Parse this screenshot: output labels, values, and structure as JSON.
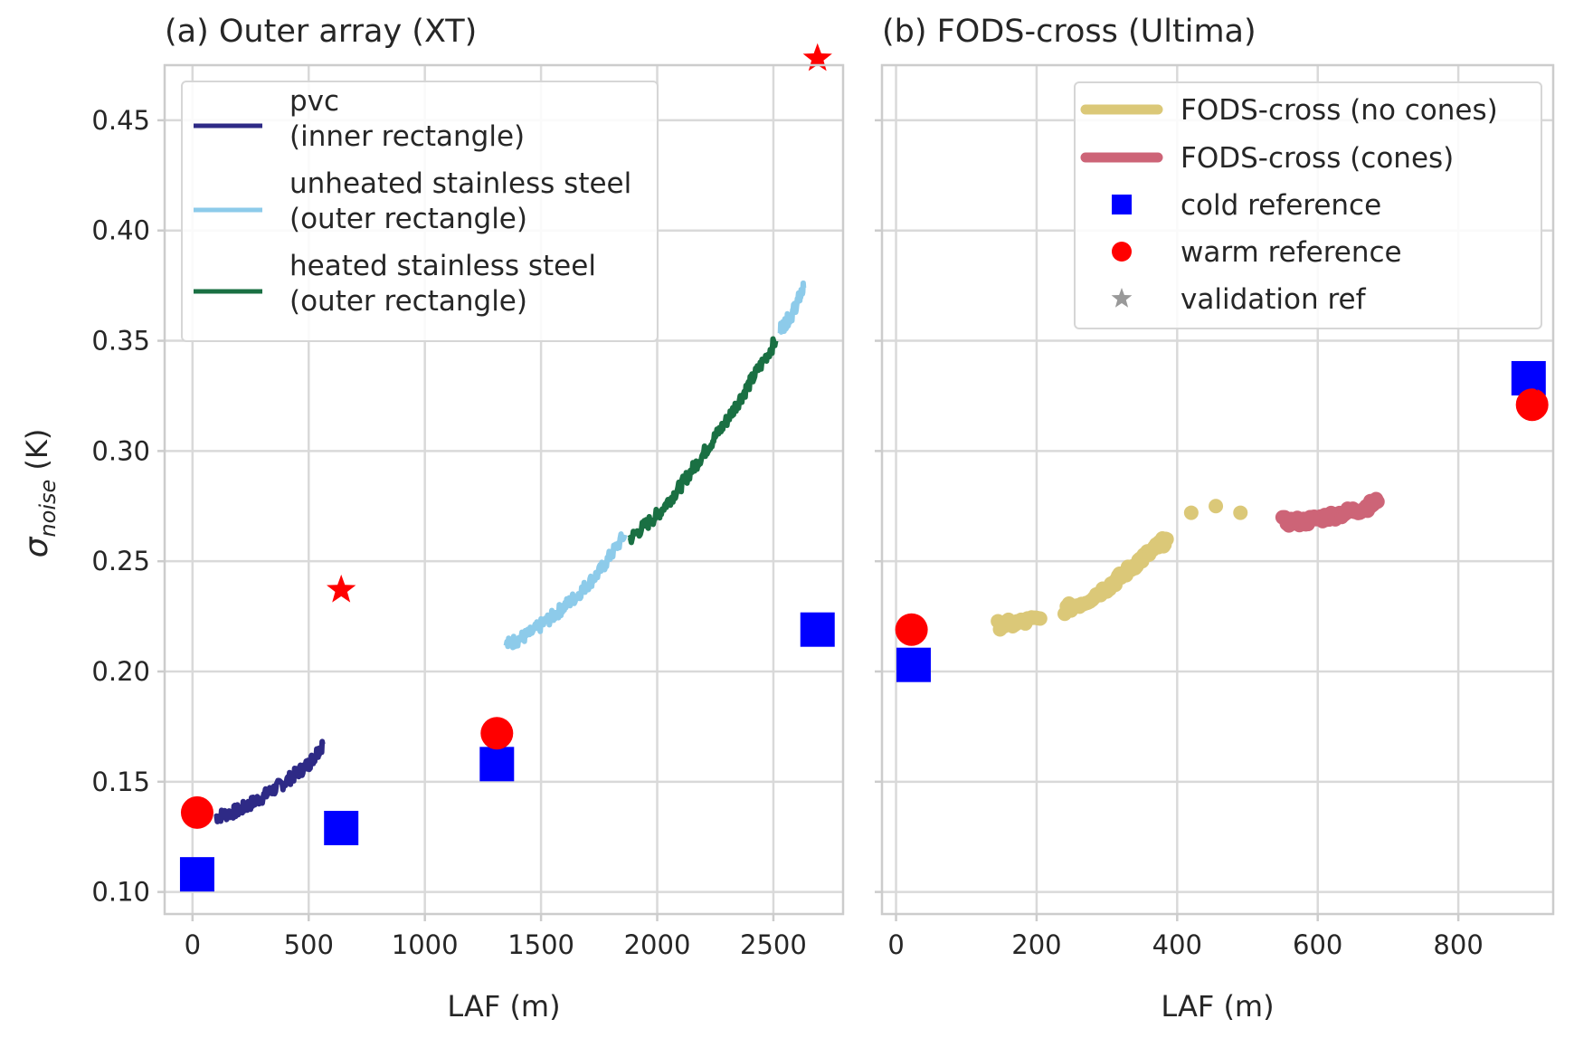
{
  "chart_data": [
    {
      "type": "line",
      "title": "(a) Outer array (XT)",
      "xlabel": "LAF (m)",
      "ylabel_symbol": "σ",
      "ylabel_sub": "noise",
      "ylabel_unit": " (K)",
      "xlim": [
        -120,
        2800
      ],
      "ylim": [
        0.09,
        0.475
      ],
      "xticks": [
        0,
        500,
        1000,
        1500,
        2000,
        2500
      ],
      "xtick_labels": [
        "0",
        "500",
        "1000",
        "1500",
        "2000",
        "2500"
      ],
      "yticks": [
        0.1,
        0.15,
        0.2,
        0.25,
        0.3,
        0.35,
        0.4,
        0.45
      ],
      "ytick_labels": [
        "0.10",
        "0.15",
        "0.20",
        "0.25",
        "0.30",
        "0.35",
        "0.40",
        "0.45"
      ],
      "grid": true,
      "legend_position": "upper-left",
      "legend": [
        {
          "label_line1": "pvc",
          "label_line2": " (inner rectangle)",
          "color": "#2e2a86"
        },
        {
          "label_line1": "unheated stainless steel",
          "label_line2": " (outer rectangle)",
          "color": "#8dcbea"
        },
        {
          "label_line1": "heated stainless steel",
          "label_line2": " (outer rectangle)",
          "color": "#1a7043"
        }
      ],
      "series": [
        {
          "name": "pvc (inner rectangle)",
          "color": "#2e2a86",
          "x": [
            100,
            200,
            300,
            400,
            500,
            560
          ],
          "y": [
            0.134,
            0.137,
            0.143,
            0.15,
            0.158,
            0.167
          ]
        },
        {
          "name": "unheated stainless steel (outer rectangle)",
          "color": "#8dcbea",
          "x": [
            1350,
            1450,
            1550,
            1650,
            1750,
            1860
          ],
          "y": [
            0.212,
            0.217,
            0.225,
            0.234,
            0.245,
            0.262
          ]
        },
        {
          "name": "heated stainless steel (outer rectangle)",
          "color": "#1a7043",
          "x": [
            1880,
            2000,
            2100,
            2200,
            2300,
            2400,
            2510
          ],
          "y": [
            0.26,
            0.271,
            0.284,
            0.299,
            0.314,
            0.331,
            0.35
          ]
        },
        {
          "name": "unheated stainless steel (outer rectangle)",
          "color": "#8dcbea",
          "x": [
            2530,
            2580,
            2630
          ],
          "y": [
            0.355,
            0.362,
            0.374
          ]
        }
      ],
      "cold_reference": {
        "color": "#0000ff",
        "x": [
          20,
          640,
          1310,
          2690
        ],
        "y": [
          0.108,
          0.129,
          0.158,
          0.219
        ]
      },
      "warm_reference": {
        "color": "#ff0000",
        "x": [
          20,
          1310
        ],
        "y": [
          0.136,
          0.172
        ]
      },
      "validation_ref": {
        "color": "#ff0000",
        "x": [
          640,
          2690
        ],
        "y": [
          0.237,
          0.478
        ]
      }
    },
    {
      "type": "scatter",
      "title": "(b) FODS-cross (Ultima)",
      "xlabel": "LAF (m)",
      "xlim": [
        -20,
        935
      ],
      "ylim": [
        0.09,
        0.475
      ],
      "xticks": [
        0,
        200,
        400,
        600,
        800
      ],
      "xtick_labels": [
        "0",
        "200",
        "400",
        "600",
        "800"
      ],
      "yticks": [
        0.1,
        0.15,
        0.2,
        0.25,
        0.3,
        0.35,
        0.4,
        0.45
      ],
      "grid": true,
      "legend_position": "upper-right",
      "legend": [
        {
          "label": "FODS-cross (no cones)",
          "color": "#dbc878",
          "marker": "line"
        },
        {
          "label": "FODS-cross (cones)",
          "color": "#cd6477",
          "marker": "line"
        },
        {
          "label": "cold reference",
          "color": "#0000ff",
          "marker": "square"
        },
        {
          "label": "warm reference",
          "color": "#ff0000",
          "marker": "circle"
        },
        {
          "label": "validation ref",
          "color": "#999999",
          "marker": "star"
        }
      ],
      "series": [
        {
          "name": "FODS-cross (no cones)",
          "color": "#dbc878",
          "x": [
            145,
            175,
            205,
            240,
            270,
            300,
            320,
            345,
            370,
            385,
            420,
            455,
            490
          ],
          "y": [
            0.221,
            0.222,
            0.224,
            0.228,
            0.232,
            0.238,
            0.243,
            0.25,
            0.256,
            0.26,
            0.272,
            0.275,
            0.272
          ]
        },
        {
          "name": "FODS-cross (cones)",
          "color": "#cd6477",
          "x": [
            550,
            580,
            610,
            640,
            665,
            685
          ],
          "y": [
            0.268,
            0.268,
            0.27,
            0.272,
            0.274,
            0.277
          ]
        }
      ],
      "cold_reference": {
        "color": "#0000ff",
        "x": [
          25,
          900
        ],
        "y": [
          0.203,
          0.333
        ]
      },
      "warm_reference": {
        "color": "#ff0000",
        "x": [
          22,
          905
        ],
        "y": [
          0.219,
          0.321
        ]
      },
      "validation_ref": {
        "color": "#0000ff",
        "x": [
          900
        ],
        "y": [
          0.333
        ]
      }
    }
  ]
}
